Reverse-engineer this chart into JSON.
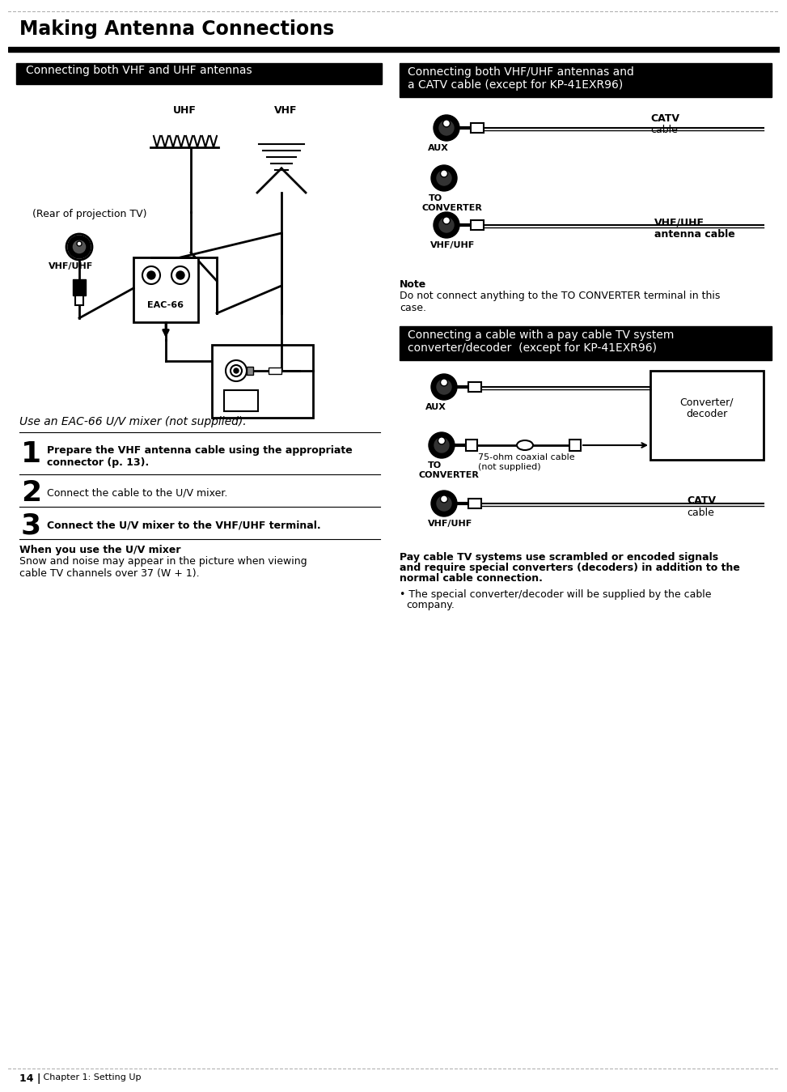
{
  "title": "Making Antenna Connections",
  "section1_header": "Connecting both VHF and UHF antennas",
  "section2_header": "Connecting both VHF/UHF antennas and\na CATV cable (except for KP-41EXR96)",
  "section3_header": "Connecting a cable with a pay cable TV system\nconverter/decoder  (except for KP-41EXR96)",
  "step1_text": "Prepare the VHF antenna cable using the appropriate\nconnector (p. 13).",
  "step2_text": "Connect the cable to the U/V mixer.",
  "step3_text": "Connect the U/V mixer to the VHF/UHF terminal.",
  "when_bold": "When you use the U/V mixer",
  "when_text": "Snow and noise may appear in the picture when viewing\ncable TV channels over 37 (W + 1).",
  "use_eac": "Use an EAC-66 U/V mixer (not supplied).",
  "note_bold": "Note",
  "note_text": "Do not connect anything to the TO CONVERTER terminal in this\ncase.",
  "pay_cable_text1": "Pay cable TV systems use scrambled or encoded signals",
  "pay_cable_text2": "and require special converters (decoders) in addition to the",
  "pay_cable_text3": "normal cable connection.",
  "bullet_text1": "The special converter/decoder will be supplied by the cable",
  "bullet_text2": "company.",
  "footer_text": "14 |   Chapter 1: Setting Up"
}
